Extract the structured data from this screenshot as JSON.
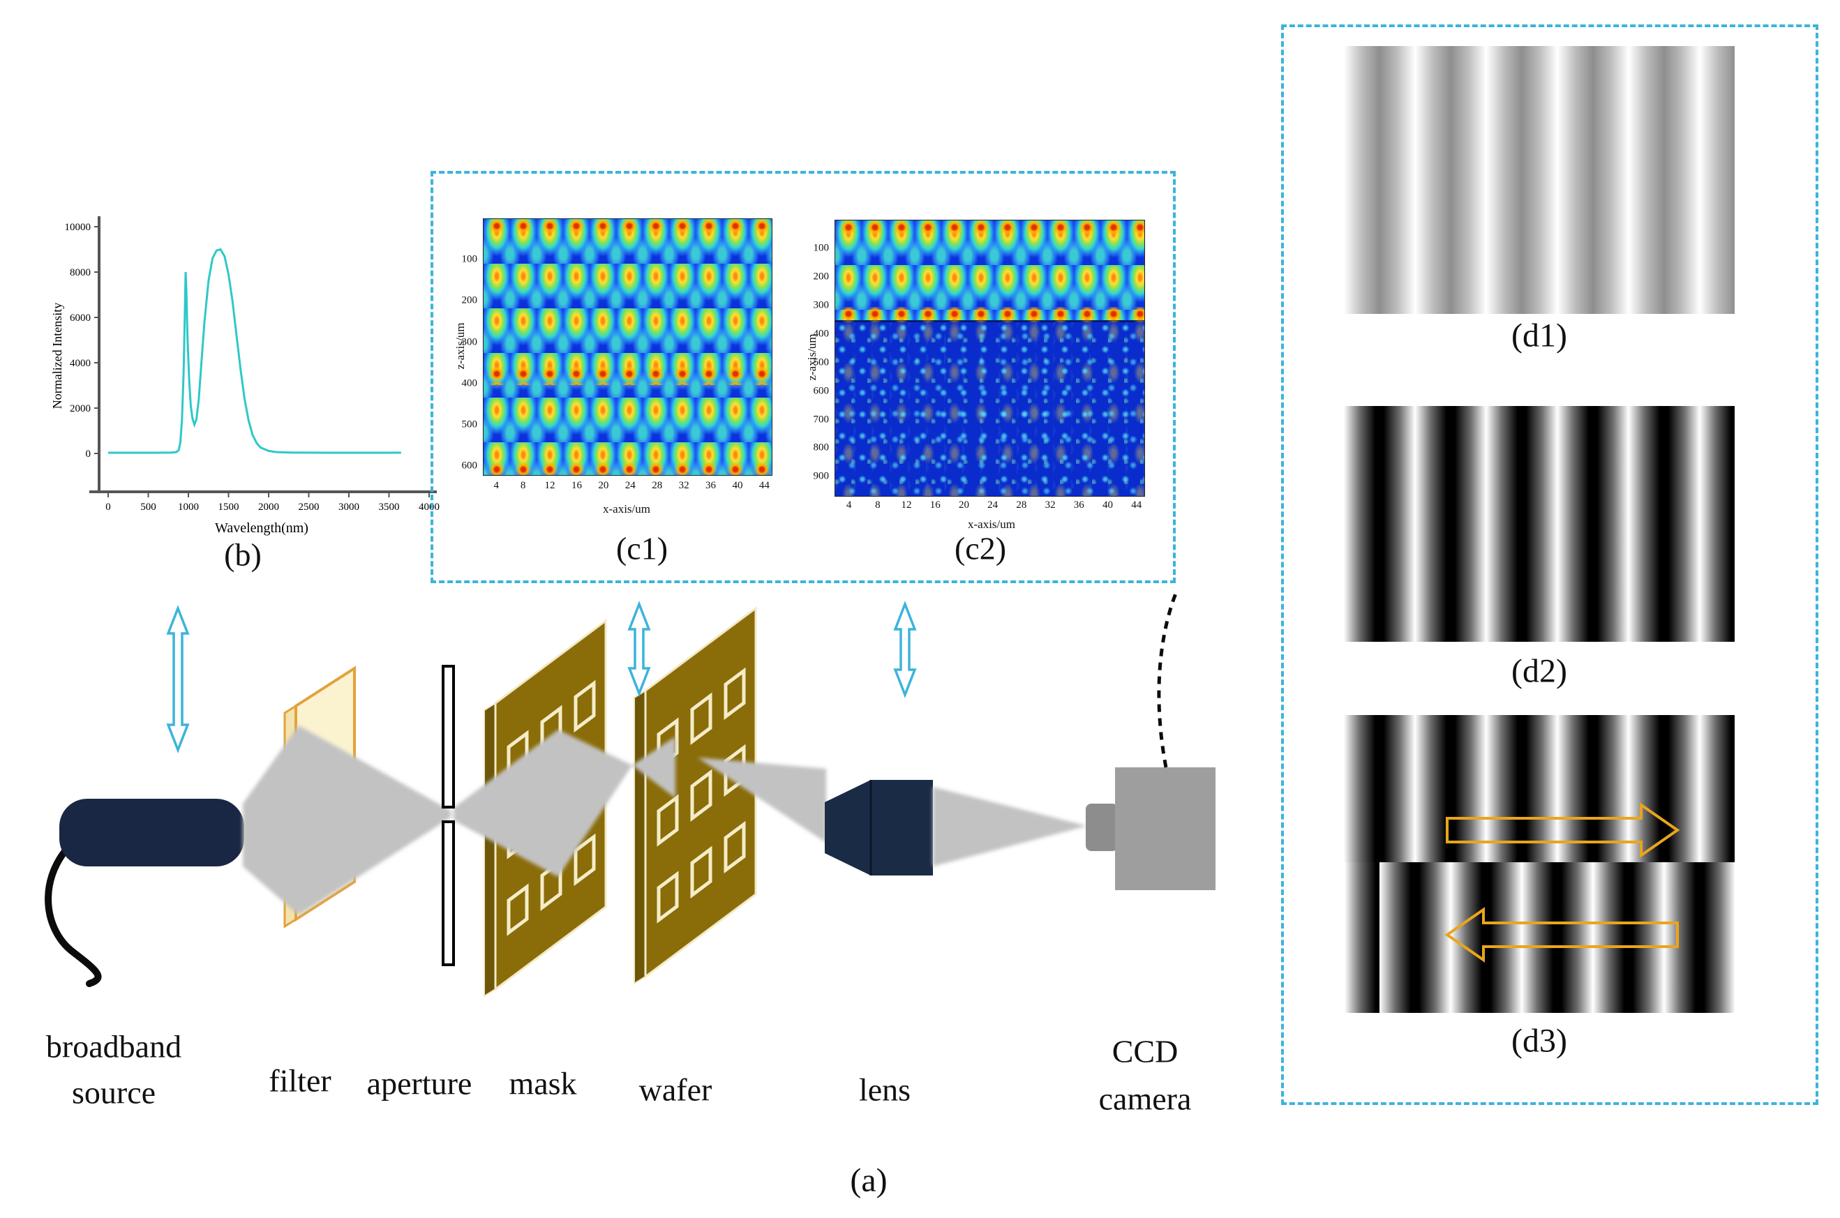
{
  "figure_labels": {
    "a": "(a)",
    "b": "(b)",
    "c1": "(c1)",
    "c2": "(c2)",
    "d1": "(d1)",
    "d2": "(d2)",
    "d3": "(d3)"
  },
  "components": {
    "broadband_1": "broadband",
    "broadband_2": "source",
    "filter": "filter",
    "aperture": "aperture",
    "mask": "mask",
    "wafer": "wafer",
    "lens": "lens",
    "ccd_1": "CCD",
    "ccd_2": "camera"
  },
  "colors": {
    "accent_cyan": "#3cb4da",
    "curve_teal": "#2ec8c8",
    "plate_gold": "#8a6c09",
    "plate_edge_cream": "#f2e9c5",
    "filter_cream": "#fbf2d0",
    "filter_border": "#e2a23c",
    "navy": "#1a2b45",
    "camera_gray": "#9e9e9e",
    "beam_gray": "#c2c2c2",
    "fringe_arrow_orange": "#e9a51d",
    "heatmap_blue": "#0b31dc"
  },
  "chart_data": [
    {
      "type": "line",
      "name": "source_spectrum",
      "panel": "(b)",
      "xlabel": "Wavelength(nm)",
      "ylabel": "Normalized Intensity",
      "xlim": [
        0,
        4000
      ],
      "ylim": [
        0,
        10000
      ],
      "xticks": [
        0,
        500,
        1000,
        1500,
        2000,
        2500,
        3000,
        3500,
        4000
      ],
      "yticks": [
        0,
        2000,
        4000,
        6000,
        8000,
        10000
      ],
      "line_color": "#2ec8c8",
      "grid": false,
      "legend": "none",
      "x": [
        0,
        200,
        400,
        600,
        800,
        850,
        880,
        900,
        920,
        940,
        955,
        965,
        975,
        990,
        1010,
        1030,
        1050,
        1075,
        1100,
        1130,
        1160,
        1200,
        1250,
        1300,
        1350,
        1400,
        1450,
        1500,
        1550,
        1600,
        1650,
        1700,
        1750,
        1800,
        1850,
        1900,
        2000,
        2100,
        2200,
        2300,
        2500,
        2750,
        3000,
        3250,
        3500,
        3650
      ],
      "y": [
        30,
        30,
        30,
        30,
        40,
        60,
        150,
        500,
        1500,
        3500,
        6000,
        8000,
        7200,
        5000,
        3200,
        2100,
        1550,
        1270,
        1500,
        2400,
        3900,
        5800,
        7600,
        8600,
        8950,
        9000,
        8700,
        7900,
        6700,
        5200,
        3700,
        2400,
        1450,
        820,
        460,
        260,
        110,
        60,
        45,
        40,
        35,
        32,
        30,
        30,
        30,
        35
      ]
    },
    {
      "type": "heatmap",
      "name": "simulated_field_mask_plane",
      "panel": "(c1)",
      "xlabel": "x-axis/um",
      "ylabel": "z-axis/um",
      "xticks": [
        4,
        8,
        12,
        16,
        20,
        24,
        28,
        32,
        36,
        40,
        44
      ],
      "yticks": [
        100,
        200,
        300,
        400,
        500,
        600
      ],
      "xlim": [
        2,
        45
      ],
      "ylim": [
        0,
        620
      ],
      "colormap": "jet",
      "description": "Periodic Talbot self-imaging lattice: vertical columns of cyan/green blobs with yellow-orange hot spots on deep blue background; bright orange rows near z=0, z=365 and z=600."
    },
    {
      "type": "heatmap",
      "name": "simulated_field_wafer_plane",
      "panel": "(c2)",
      "xlabel": "x-axis/um",
      "ylabel": "z-axis/um",
      "xticks": [
        4,
        8,
        12,
        16,
        20,
        24,
        28,
        32,
        36,
        40,
        44
      ],
      "yticks": [
        100,
        200,
        300,
        400,
        500,
        600,
        700,
        800,
        900
      ],
      "xlim": [
        2,
        45
      ],
      "ylim": [
        0,
        965
      ],
      "colormap": "jet",
      "description": "Regular blob lattice for z < ~370 um; below that a diffuse speckled diffraction pattern on deep blue background."
    },
    {
      "type": "fringes",
      "name": "ccd_fringes_low_contrast",
      "panel": "(d1)",
      "orientation": "vertical",
      "contrast": "low",
      "periods": 5.5
    },
    {
      "type": "fringes",
      "name": "ccd_fringes_high_contrast",
      "panel": "(d2)",
      "orientation": "vertical",
      "contrast": "high",
      "periods": 5.5
    },
    {
      "type": "fringes",
      "name": "ccd_fringes_phase_shift",
      "panel": "(d3)",
      "orientation": "vertical",
      "contrast": "high",
      "periods": 5.5,
      "phase_shift": "half period between top and bottom halves",
      "arrows": [
        "right",
        "left"
      ]
    }
  ]
}
